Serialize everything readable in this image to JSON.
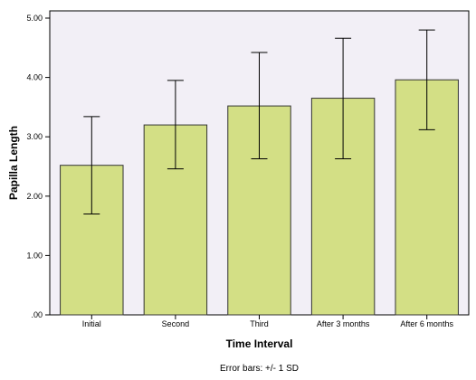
{
  "chart_data": {
    "type": "bar",
    "categories": [
      "Initial",
      "Second",
      "Third",
      "After 3 months",
      "After 6 months"
    ],
    "values": [
      2.52,
      3.2,
      3.52,
      3.65,
      3.96
    ],
    "error_bars": {
      "lower": [
        1.7,
        2.46,
        2.63,
        2.63,
        3.12
      ],
      "upper": [
        3.34,
        3.95,
        4.42,
        4.66,
        4.8
      ]
    },
    "xlabel": "Time Interval",
    "ylabel": "Papilla Length",
    "ylim": [
      0,
      5
    ],
    "y_ticks": [
      ".00",
      "1.00",
      "2.00",
      "3.00",
      "4.00",
      "5.00"
    ],
    "note": "Error bars: +/- 1 SD",
    "grid": false,
    "colors": {
      "plot_background": "#f2eff6",
      "bar_fill": "#d3df85",
      "bar_stroke": "#333333",
      "error_bar": "#000000"
    }
  }
}
